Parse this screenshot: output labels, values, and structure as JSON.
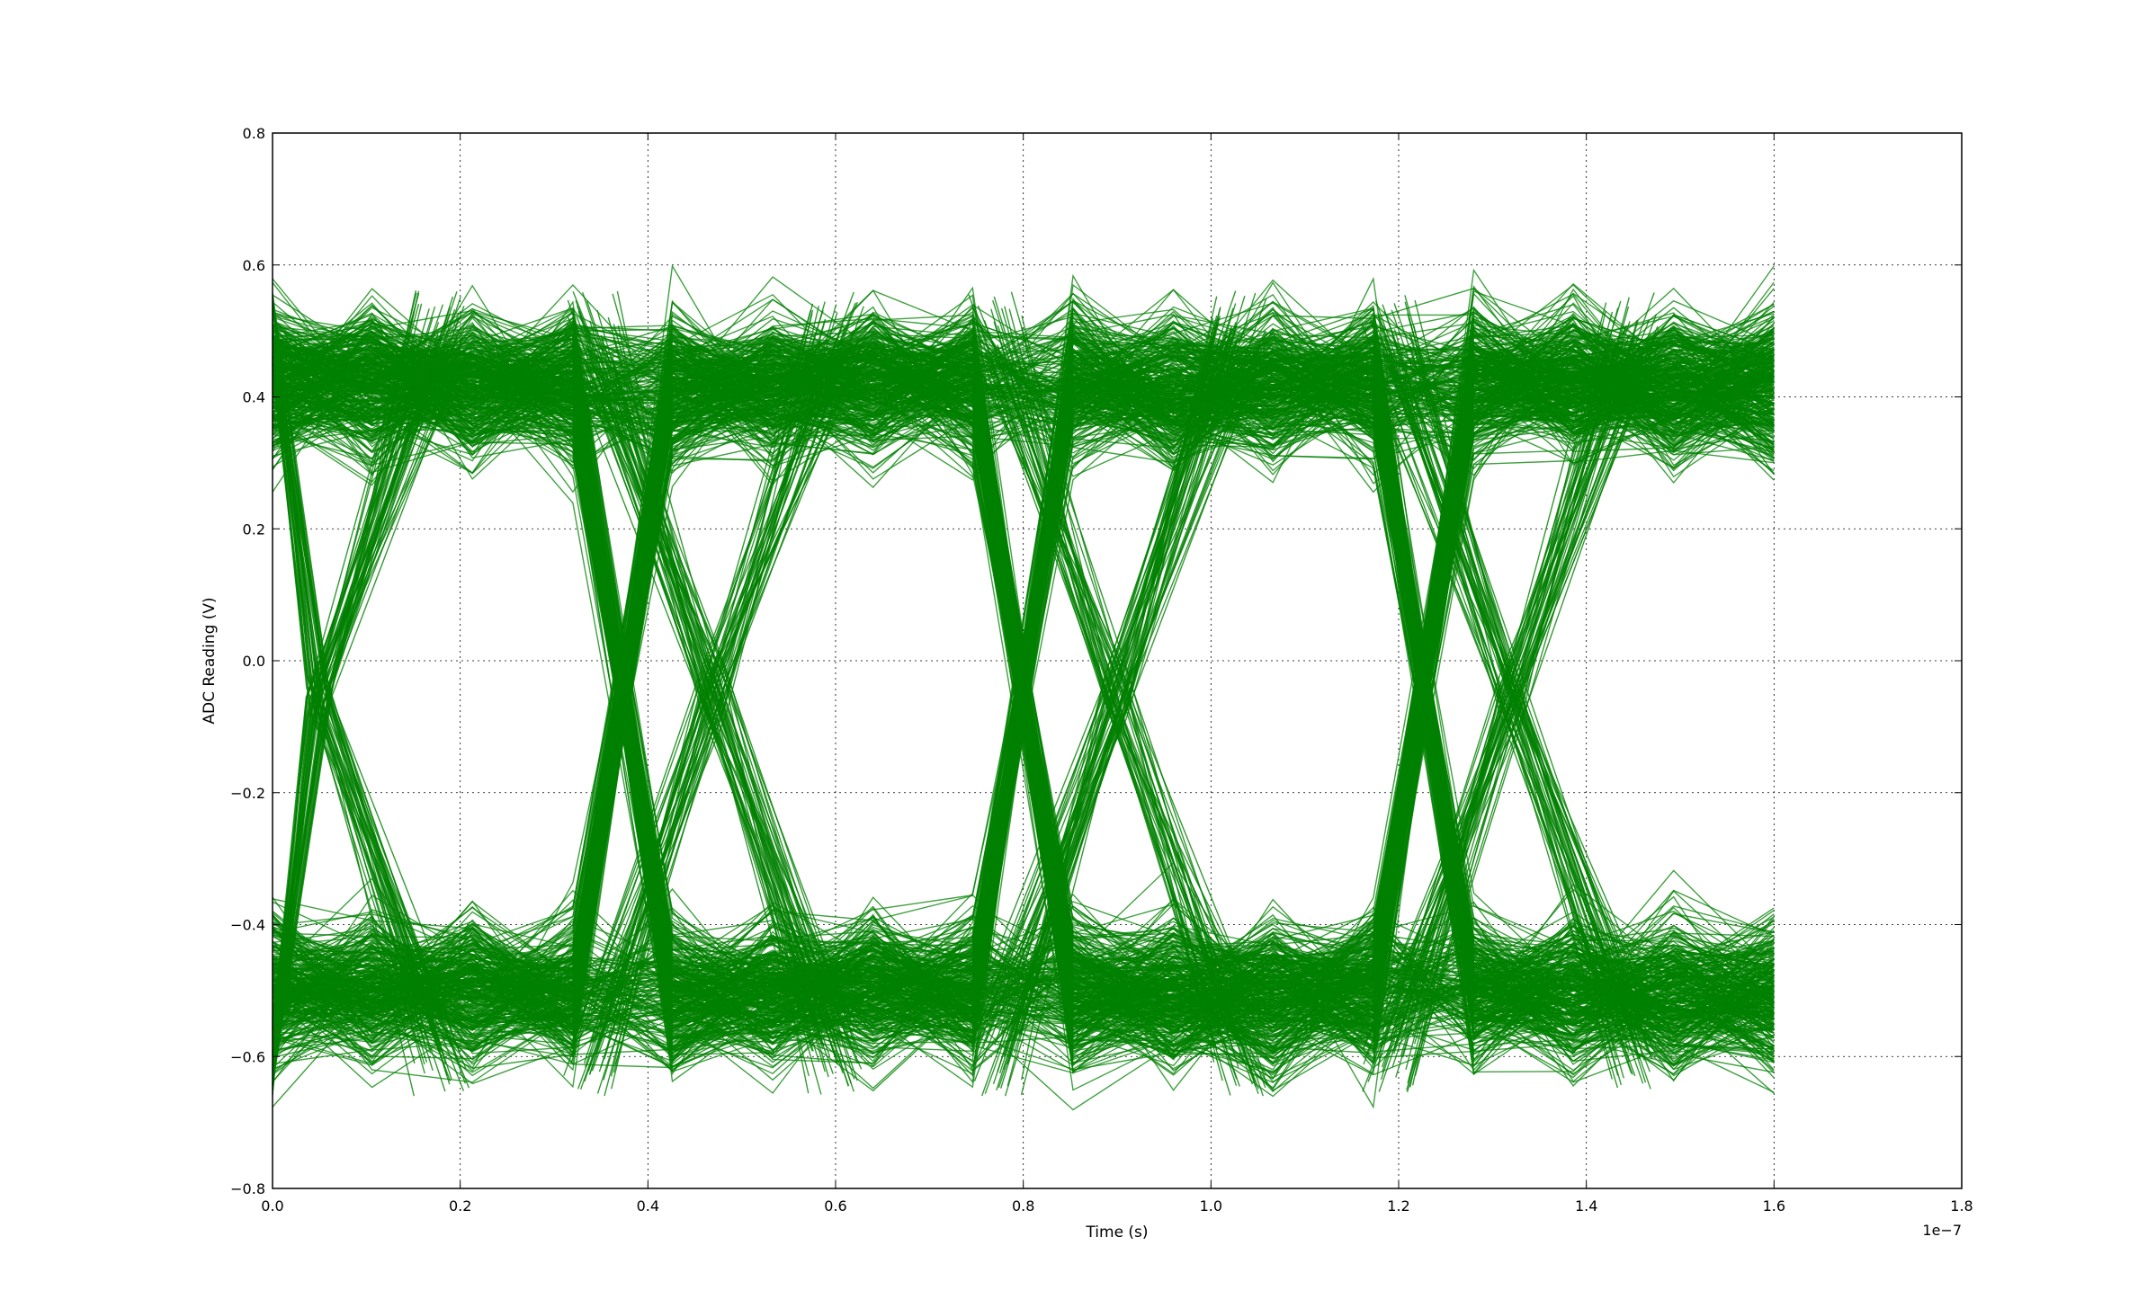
{
  "chart_data": {
    "type": "line",
    "title": "",
    "xlabel": "Time (s)",
    "ylabel": "ADC Reading (V)",
    "x_offset_label": "1e−7",
    "xlim": [
      0.0,
      1.8
    ],
    "ylim": [
      -0.8,
      0.8
    ],
    "x_ticks": [
      "0.0",
      "0.2",
      "0.4",
      "0.6",
      "0.8",
      "1.0",
      "1.2",
      "1.4",
      "1.6",
      "1.8"
    ],
    "y_ticks": [
      "0.8",
      "0.6",
      "0.4",
      "0.2",
      "0.0",
      "−0.2",
      "−0.4",
      "−0.6",
      "−0.8"
    ],
    "x_tick_values": [
      0.0,
      0.2,
      0.4,
      0.6,
      0.8,
      1.0,
      1.2,
      1.4,
      1.6,
      1.8
    ],
    "y_tick_values": [
      0.8,
      0.6,
      0.4,
      0.2,
      0.0,
      -0.2,
      -0.4,
      -0.6,
      -0.8
    ],
    "grid": true,
    "legend": "none",
    "line_color": "#008000",
    "description_of_series": "eye diagram overlay of many traces",
    "sample_x": [
      0.0,
      0.106,
      0.213,
      0.32,
      0.426,
      0.533,
      0.64,
      0.746,
      0.853,
      0.96,
      1.066,
      1.173,
      1.28,
      1.386,
      1.493,
      1.6
    ],
    "high_level": 0.42,
    "low_level": -0.5,
    "high_envelope": [
      0.58,
      0.62
    ],
    "low_envelope": [
      -0.75,
      -0.65
    ],
    "crossing_level": -0.05
  }
}
